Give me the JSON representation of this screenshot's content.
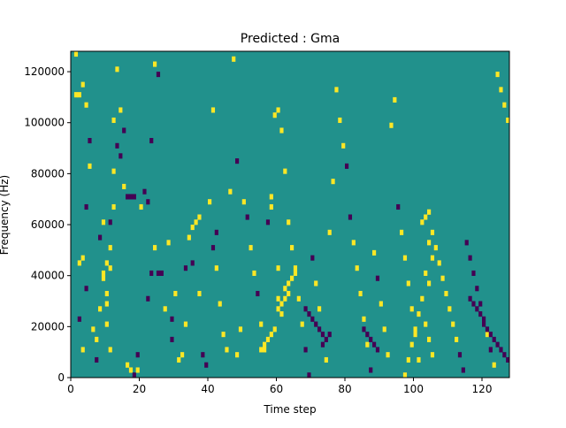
{
  "chart_data": {
    "type": "heatmap",
    "title": "Predicted : Gma",
    "xlabel": "Time step",
    "ylabel": "Frequency (Hz)",
    "xlim": [
      0,
      128
    ],
    "ylim": [
      0,
      128000
    ],
    "x_ticks": [
      0,
      20,
      40,
      60,
      80,
      100,
      120
    ],
    "y_ticks": [
      0,
      20000,
      40000,
      60000,
      80000,
      100000,
      120000
    ],
    "x_tick_labels": [
      "0",
      "20",
      "40",
      "60",
      "80",
      "100",
      "120"
    ],
    "y_tick_labels": [
      "0",
      "20000",
      "40000",
      "60000",
      "80000",
      "100000",
      "120000"
    ],
    "colormap": "viridis",
    "value_levels": [
      -1,
      0,
      1
    ],
    "background_value": 0,
    "colors": {
      "neg": "#440154",
      "zero": "#21918c",
      "pos": "#fde725"
    },
    "grid": false,
    "legend": "none",
    "cells": [
      [
        1,
        126000,
        1
      ],
      [
        1,
        110000,
        1
      ],
      [
        2,
        110000,
        1
      ],
      [
        3,
        114000,
        1
      ],
      [
        4,
        106000,
        1
      ],
      [
        5,
        92000,
        -1
      ],
      [
        5,
        82000,
        1
      ],
      [
        4,
        66000,
        -1
      ],
      [
        2,
        44000,
        1
      ],
      [
        3,
        46000,
        1
      ],
      [
        4,
        34000,
        -1
      ],
      [
        2,
        22000,
        -1
      ],
      [
        3,
        10000,
        1
      ],
      [
        6,
        18000,
        1
      ],
      [
        7,
        6000,
        -1
      ],
      [
        7,
        14000,
        1
      ],
      [
        8,
        26000,
        1
      ],
      [
        8,
        54000,
        -1
      ],
      [
        9,
        60000,
        1
      ],
      [
        9,
        40000,
        1
      ],
      [
        9,
        38000,
        1
      ],
      [
        10,
        44000,
        1
      ],
      [
        10,
        32000,
        1
      ],
      [
        10,
        28000,
        1
      ],
      [
        10,
        20000,
        1
      ],
      [
        11,
        10000,
        1
      ],
      [
        11,
        42000,
        1
      ],
      [
        11,
        50000,
        1
      ],
      [
        11,
        60000,
        -1
      ],
      [
        12,
        66000,
        1
      ],
      [
        12,
        80000,
        1
      ],
      [
        13,
        90000,
        -1
      ],
      [
        14,
        86000,
        -1
      ],
      [
        14,
        104000,
        1
      ],
      [
        15,
        96000,
        -1
      ],
      [
        12,
        100000,
        1
      ],
      [
        13,
        120000,
        1
      ],
      [
        15,
        74000,
        1
      ],
      [
        16,
        70000,
        -1
      ],
      [
        17,
        70000,
        -1
      ],
      [
        18,
        70000,
        -1
      ],
      [
        16,
        4000,
        1
      ],
      [
        17,
        2000,
        1
      ],
      [
        18,
        0,
        -1
      ],
      [
        19,
        2000,
        1
      ],
      [
        19,
        8000,
        -1
      ],
      [
        20,
        66000,
        1
      ],
      [
        21,
        72000,
        -1
      ],
      [
        22,
        68000,
        -1
      ],
      [
        23,
        92000,
        -1
      ],
      [
        24,
        122000,
        1
      ],
      [
        25,
        118000,
        -1
      ],
      [
        22,
        30000,
        -1
      ],
      [
        23,
        40000,
        -1
      ],
      [
        24,
        50000,
        1
      ],
      [
        25,
        40000,
        -1
      ],
      [
        26,
        40000,
        -1
      ],
      [
        27,
        26000,
        1
      ],
      [
        28,
        52000,
        1
      ],
      [
        29,
        14000,
        -1
      ],
      [
        29,
        22000,
        -1
      ],
      [
        30,
        32000,
        1
      ],
      [
        31,
        6000,
        1
      ],
      [
        32,
        8000,
        1
      ],
      [
        33,
        20000,
        1
      ],
      [
        33,
        42000,
        -1
      ],
      [
        34,
        54000,
        1
      ],
      [
        35,
        58000,
        1
      ],
      [
        35,
        44000,
        -1
      ],
      [
        36,
        60000,
        1
      ],
      [
        37,
        62000,
        1
      ],
      [
        37,
        32000,
        1
      ],
      [
        38,
        8000,
        -1
      ],
      [
        39,
        4000,
        -1
      ],
      [
        40,
        68000,
        1
      ],
      [
        41,
        104000,
        1
      ],
      [
        41,
        50000,
        -1
      ],
      [
        42,
        56000,
        -1
      ],
      [
        42,
        42000,
        1
      ],
      [
        43,
        28000,
        1
      ],
      [
        44,
        16000,
        1
      ],
      [
        45,
        10000,
        1
      ],
      [
        46,
        72000,
        1
      ],
      [
        47,
        124000,
        1
      ],
      [
        48,
        84000,
        -1
      ],
      [
        48,
        8000,
        1
      ],
      [
        49,
        18000,
        1
      ],
      [
        50,
        68000,
        1
      ],
      [
        51,
        62000,
        -1
      ],
      [
        52,
        50000,
        1
      ],
      [
        53,
        40000,
        1
      ],
      [
        54,
        32000,
        -1
      ],
      [
        55,
        20000,
        1
      ],
      [
        56,
        10000,
        1
      ],
      [
        57,
        60000,
        -1
      ],
      [
        58,
        66000,
        1
      ],
      [
        58,
        70000,
        1
      ],
      [
        59,
        102000,
        1
      ],
      [
        60,
        104000,
        1
      ],
      [
        61,
        96000,
        1
      ],
      [
        62,
        80000,
        1
      ],
      [
        63,
        60000,
        1
      ],
      [
        64,
        50000,
        1
      ],
      [
        65,
        40000,
        1
      ],
      [
        66,
        30000,
        1
      ],
      [
        67,
        20000,
        1
      ],
      [
        68,
        10000,
        -1
      ],
      [
        69,
        0,
        -1
      ],
      [
        70,
        46000,
        -1
      ],
      [
        71,
        36000,
        1
      ],
      [
        72,
        26000,
        1
      ],
      [
        73,
        16000,
        -1
      ],
      [
        74,
        6000,
        1
      ],
      [
        75,
        56000,
        1
      ],
      [
        76,
        76000,
        1
      ],
      [
        77,
        112000,
        1
      ],
      [
        78,
        100000,
        1
      ],
      [
        79,
        90000,
        1
      ],
      [
        80,
        82000,
        -1
      ],
      [
        81,
        62000,
        -1
      ],
      [
        82,
        52000,
        1
      ],
      [
        83,
        42000,
        1
      ],
      [
        84,
        32000,
        1
      ],
      [
        85,
        22000,
        1
      ],
      [
        86,
        12000,
        1
      ],
      [
        87,
        2000,
        -1
      ],
      [
        88,
        48000,
        1
      ],
      [
        89,
        38000,
        -1
      ],
      [
        90,
        28000,
        1
      ],
      [
        91,
        18000,
        1
      ],
      [
        92,
        8000,
        1
      ],
      [
        93,
        98000,
        1
      ],
      [
        94,
        108000,
        1
      ],
      [
        95,
        66000,
        -1
      ],
      [
        96,
        56000,
        1
      ],
      [
        97,
        46000,
        1
      ],
      [
        98,
        36000,
        1
      ],
      [
        99,
        26000,
        1
      ],
      [
        100,
        16000,
        1
      ],
      [
        101,
        6000,
        1
      ],
      [
        102,
        60000,
        1
      ],
      [
        103,
        62000,
        1
      ],
      [
        104,
        64000,
        1
      ],
      [
        105,
        56000,
        1
      ],
      [
        106,
        50000,
        1
      ],
      [
        107,
        44000,
        1
      ],
      [
        108,
        38000,
        1
      ],
      [
        109,
        32000,
        1
      ],
      [
        110,
        26000,
        1
      ],
      [
        111,
        20000,
        1
      ],
      [
        112,
        14000,
        1
      ],
      [
        113,
        8000,
        -1
      ],
      [
        114,
        2000,
        -1
      ],
      [
        115,
        52000,
        -1
      ],
      [
        116,
        46000,
        -1
      ],
      [
        117,
        40000,
        -1
      ],
      [
        118,
        34000,
        -1
      ],
      [
        119,
        28000,
        -1
      ],
      [
        120,
        22000,
        -1
      ],
      [
        121,
        16000,
        1
      ],
      [
        122,
        10000,
        -1
      ],
      [
        123,
        4000,
        1
      ],
      [
        124,
        118000,
        1
      ],
      [
        125,
        112000,
        1
      ],
      [
        126,
        106000,
        1
      ],
      [
        127,
        100000,
        1
      ],
      [
        60,
        30000,
        1
      ],
      [
        60,
        26000,
        1
      ],
      [
        61,
        24000,
        1
      ],
      [
        61,
        28000,
        1
      ],
      [
        62,
        30000,
        1
      ],
      [
        62,
        34000,
        1
      ],
      [
        63,
        32000,
        1
      ],
      [
        63,
        36000,
        1
      ],
      [
        64,
        38000,
        1
      ],
      [
        65,
        42000,
        1
      ],
      [
        60,
        42000,
        1
      ],
      [
        59,
        18000,
        1
      ],
      [
        58,
        16000,
        1
      ],
      [
        57,
        14000,
        1
      ],
      [
        56,
        12000,
        1
      ],
      [
        55,
        10000,
        1
      ],
      [
        104,
        52000,
        1
      ],
      [
        105,
        46000,
        1
      ],
      [
        103,
        40000,
        1
      ],
      [
        104,
        36000,
        1
      ],
      [
        102,
        30000,
        1
      ],
      [
        101,
        24000,
        1
      ],
      [
        100,
        18000,
        1
      ],
      [
        99,
        12000,
        1
      ],
      [
        98,
        6000,
        1
      ],
      [
        97,
        0,
        1
      ],
      [
        103,
        20000,
        1
      ],
      [
        104,
        14000,
        1
      ],
      [
        105,
        8000,
        1
      ],
      [
        116,
        30000,
        -1
      ],
      [
        117,
        28000,
        -1
      ],
      [
        118,
        26000,
        -1
      ],
      [
        119,
        24000,
        -1
      ],
      [
        120,
        20000,
        -1
      ],
      [
        121,
        18000,
        -1
      ],
      [
        122,
        16000,
        -1
      ],
      [
        123,
        14000,
        -1
      ],
      [
        124,
        12000,
        -1
      ],
      [
        125,
        10000,
        -1
      ],
      [
        126,
        8000,
        -1
      ],
      [
        127,
        6000,
        -1
      ],
      [
        68,
        26000,
        -1
      ],
      [
        69,
        24000,
        -1
      ],
      [
        70,
        22000,
        -1
      ],
      [
        71,
        20000,
        -1
      ],
      [
        72,
        18000,
        -1
      ],
      [
        73,
        12000,
        -1
      ],
      [
        74,
        14000,
        -1
      ],
      [
        75,
        16000,
        -1
      ],
      [
        85,
        18000,
        -1
      ],
      [
        86,
        16000,
        -1
      ],
      [
        87,
        14000,
        -1
      ],
      [
        88,
        12000,
        -1
      ],
      [
        89,
        10000,
        -1
      ]
    ]
  }
}
